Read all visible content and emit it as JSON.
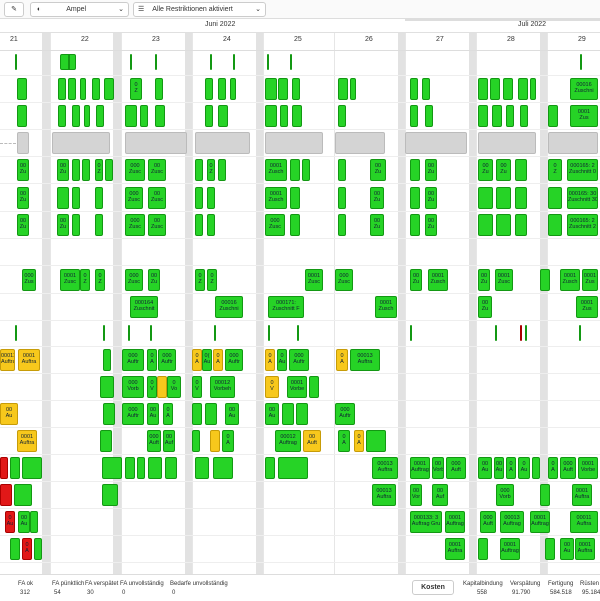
{
  "toolbar": {
    "view": "Ampel",
    "filter": "Alle Restriktionen aktiviert"
  },
  "timeline": {
    "months": [
      "Juni 2022",
      "Juli 2022"
    ],
    "days": [
      "21",
      "22",
      "23",
      "24",
      "25",
      "26",
      "27",
      "28",
      "29"
    ]
  },
  "rows": [
    {
      "blocks": []
    },
    {
      "blocks": [
        [
          "0",
          "Z"
        ],
        [
          "00016",
          "Zuschni"
        ]
      ]
    },
    {
      "blocks": [
        [
          "0001",
          "Zus"
        ]
      ]
    },
    {
      "blocks": []
    },
    {
      "blocks": [
        [
          "00",
          "Zu"
        ],
        [
          "00",
          "Zu"
        ],
        [
          "0",
          "Z"
        ],
        [
          "000",
          "Zusc"
        ],
        [
          "00",
          "Zusc"
        ],
        [
          "0",
          "Z"
        ],
        [
          "0001",
          "Zusch"
        ],
        [
          "00",
          "Zu"
        ],
        [
          "00",
          "Zu"
        ],
        [
          "00",
          "Zu"
        ],
        [
          "00",
          "Zu"
        ],
        [
          "0",
          "Z"
        ],
        [
          "000165: 2",
          "Zuschnitt 0"
        ]
      ]
    },
    {
      "blocks": [
        [
          "00",
          "Zu"
        ],
        [
          "000",
          "Zusc"
        ],
        [
          "00",
          "Zusc"
        ],
        [
          "0001",
          "Zusch"
        ],
        [
          "00",
          "Zu"
        ],
        [
          "00",
          "Zu"
        ],
        [
          "000165: 30",
          "Zuschnitt 30"
        ]
      ]
    },
    {
      "blocks": [
        [
          "00",
          "Zu"
        ],
        [
          "00",
          "Zu"
        ],
        [
          "000",
          "Zusc"
        ],
        [
          "00",
          "Zusc"
        ],
        [
          "000",
          "Zusc"
        ],
        [
          "00",
          "Zu"
        ],
        [
          "00",
          "Zu"
        ],
        [
          "000165: 2",
          "Zuschnitt 2"
        ]
      ]
    },
    {
      "blocks": []
    },
    {
      "blocks": [
        [
          "000",
          "Zus"
        ],
        [
          "0001",
          "Zusc"
        ],
        [
          "0",
          "Z"
        ],
        [
          "0",
          "Z"
        ],
        [
          "000",
          "Zusc"
        ],
        [
          "00",
          "Zu"
        ],
        [
          "0",
          "Z"
        ],
        [
          "0",
          "Z"
        ],
        [
          "0001",
          "Zusc"
        ],
        [
          "000",
          "Zusc"
        ],
        [
          "00",
          "Zu"
        ],
        [
          "0001",
          "Zusch"
        ],
        [
          "00",
          "Zu"
        ],
        [
          "0001",
          "Zusc"
        ],
        [
          "0001",
          "Zusch"
        ],
        [
          "0001",
          "Zus"
        ]
      ]
    },
    {
      "blocks": [
        [
          "000164",
          "Zuschnit"
        ],
        [
          "00016",
          "Zuschni"
        ],
        [
          "000171:",
          "Zuschnitt F"
        ],
        [
          "0001",
          "Zusch"
        ],
        [
          "00",
          "Zu"
        ],
        [
          "0001",
          "Zus"
        ]
      ]
    },
    {
      "blocks": []
    },
    {
      "blocks": [
        [
          "00011",
          "Auftra"
        ],
        [
          "0001",
          "Auftra"
        ],
        [
          "000",
          "Auftr"
        ],
        [
          "0",
          "A"
        ],
        [
          "000",
          "Auftr"
        ],
        [
          "0",
          "A"
        ],
        [
          "0(",
          "Au"
        ],
        [
          "0",
          "A"
        ],
        [
          "000",
          "Auftr"
        ],
        [
          "0",
          "A"
        ],
        [
          "0",
          "Au"
        ],
        [
          "000",
          "Auftr"
        ],
        [
          "0",
          "A"
        ],
        [
          "00013",
          "Auftra"
        ]
      ]
    },
    {
      "blocks": [
        [
          "000",
          "Vorb"
        ],
        [
          "0",
          "V"
        ],
        [
          "0",
          "Vo"
        ],
        [
          "0",
          "V"
        ],
        [
          "00012",
          "Vorbeh"
        ],
        [
          "0",
          "V"
        ],
        [
          "0001",
          "Vorbe"
        ]
      ]
    },
    {
      "blocks": [
        [
          "00",
          "Au"
        ],
        [
          "000",
          "Auftr"
        ],
        [
          "00",
          "Au"
        ],
        [
          "0",
          "A"
        ],
        [
          "00",
          "Au"
        ],
        [
          "00",
          "Au"
        ],
        [
          "000",
          "Auftr"
        ]
      ]
    },
    {
      "blocks": [
        [
          "0001",
          "Auftra"
        ],
        [
          "000",
          "Auft"
        ],
        [
          "00",
          "Auf"
        ],
        [
          "0",
          "A"
        ],
        [
          "00012",
          "Auftrag"
        ],
        [
          "00",
          "Auft"
        ],
        [
          "0",
          "A"
        ],
        [
          "0",
          "A"
        ]
      ]
    },
    {
      "blocks": [
        [
          "00013",
          "Auftra"
        ],
        [
          "0001",
          "Auftrag"
        ],
        [
          "00",
          "Vorb"
        ],
        [
          "000",
          "Auft"
        ],
        [
          "00",
          "Au"
        ],
        [
          "00",
          "Au"
        ],
        [
          "0",
          "A"
        ],
        [
          "0",
          "Au"
        ],
        [
          "0",
          "A"
        ],
        [
          "000",
          "Auft"
        ],
        [
          "0001",
          "Vorbe"
        ]
      ]
    },
    {
      "blocks": [
        [
          "00013",
          "Auftra"
        ],
        [
          "00",
          "Vor"
        ],
        [
          "00",
          "Auf"
        ],
        [
          "000",
          "Vorb"
        ],
        [
          "0001",
          "Auftra"
        ]
      ]
    },
    {
      "blocks": [
        [
          "0",
          "Au"
        ],
        [
          "00",
          "Au"
        ],
        [
          "000133: 3",
          "Auftrag Gru"
        ],
        [
          "0001",
          "Auftrag"
        ],
        [
          "000",
          "Auft"
        ],
        [
          "00013",
          "Auftrag"
        ],
        [
          "0001",
          "Auftrag"
        ],
        [
          "00011",
          "Auftra"
        ]
      ]
    },
    {
      "blocks": [
        [
          "0",
          "A"
        ],
        [
          "0001",
          "Auftra"
        ],
        [
          "0001",
          "Auftrag"
        ],
        [
          "00",
          "Au"
        ],
        [
          "0001",
          "Auftra"
        ]
      ]
    }
  ],
  "footer": {
    "stats": [
      {
        "label": "FA ok",
        "value": 312
      },
      {
        "label": "FA pünktlich",
        "value": 54
      },
      {
        "label": "FA verspätet",
        "value": 30
      },
      {
        "label": "FA unvollständig",
        "value": 0
      },
      {
        "label": "Bedarfe unvollständig",
        "value": 0
      }
    ],
    "costs_button": "Kosten",
    "costs": [
      {
        "label": "Kapitalbindung",
        "value": 558
      },
      {
        "label": "Verspätung",
        "value": "91.790"
      },
      {
        "label": "Fertigung",
        "value": "584.518"
      },
      {
        "label": "Rüsten",
        "value": "95.184"
      }
    ]
  }
}
